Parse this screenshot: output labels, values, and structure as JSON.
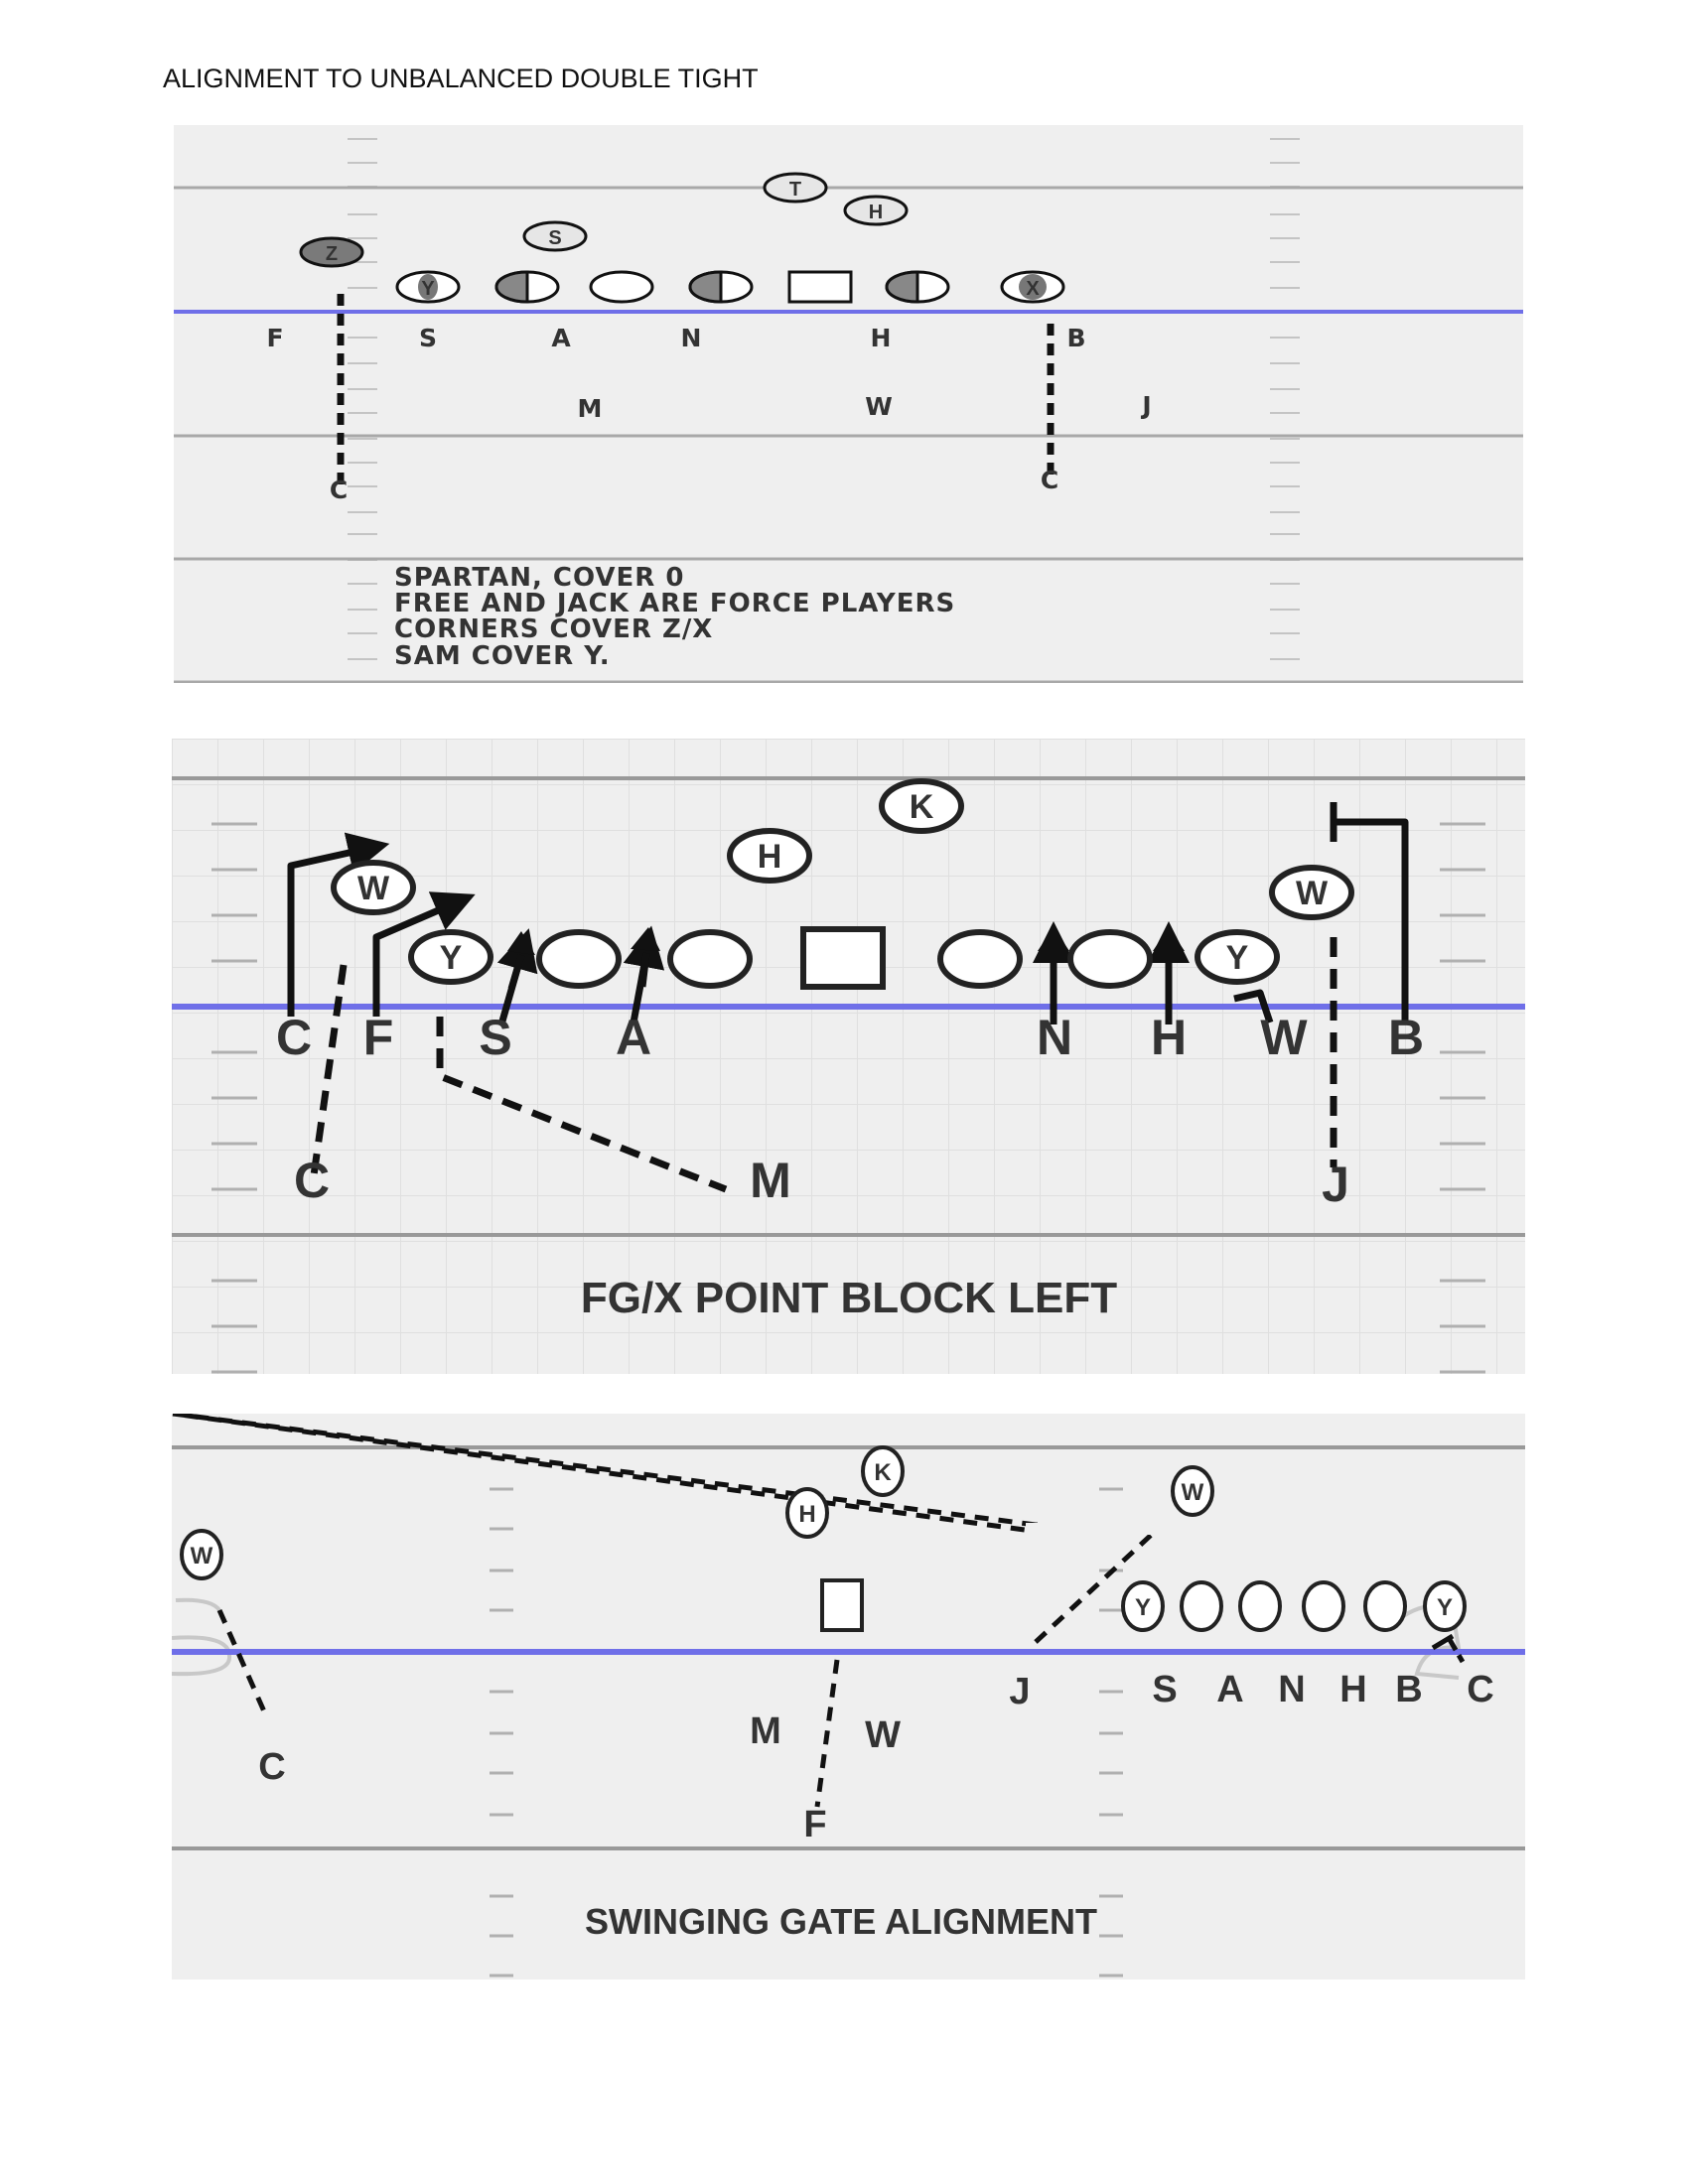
{
  "page": {
    "title": "ALIGNMENT TO UNBALANCED DOUBLE TIGHT"
  },
  "colors": {
    "field_bg": "#efefef",
    "line_of_scrimmage": "#6f6fe8",
    "yard_line": "#a8a8a8",
    "hash_marks": "#bdbdbd",
    "ink": "#111111",
    "label": "#333333"
  },
  "diagram1": {
    "offense": {
      "t": "T",
      "h": "H",
      "s": "S",
      "z": "Z",
      "y": "Y",
      "x": "X"
    },
    "defense": {
      "f": "F",
      "s": "S",
      "a": "A",
      "n": "N",
      "h": "H",
      "b": "B",
      "m": "M",
      "w": "W",
      "j": "J",
      "c_left": "C",
      "c_right": "C"
    },
    "notes": [
      "SPARTAN, COVER 0",
      "FREE AND JACK ARE FORCE PLAYERS",
      "CORNERS COVER Z/X",
      "SAM COVER Y."
    ]
  },
  "diagram2": {
    "offense": {
      "k": "K",
      "h": "H",
      "w_left": "W",
      "w_right": "W",
      "y_left": "Y",
      "y_right": "Y"
    },
    "defense": {
      "c_front": "C",
      "f": "F",
      "s": "S",
      "a": "A",
      "n": "N",
      "h": "H",
      "w": "W",
      "b": "B",
      "c_back": "C",
      "m": "M",
      "j": "J"
    },
    "caption": "FG/X POINT BLOCK LEFT"
  },
  "diagram3": {
    "offense": {
      "k": "K",
      "h": "H",
      "w_left": "W",
      "w_right": "W",
      "y_left": "Y",
      "y_right": "Y"
    },
    "defense": {
      "c_left": "C",
      "m": "M",
      "w": "W",
      "f": "F",
      "j": "J",
      "s": "S",
      "a": "A",
      "n": "N",
      "h": "H",
      "b": "B",
      "c_right": "C"
    },
    "caption": "SWINGING GATE ALIGNMENT"
  }
}
